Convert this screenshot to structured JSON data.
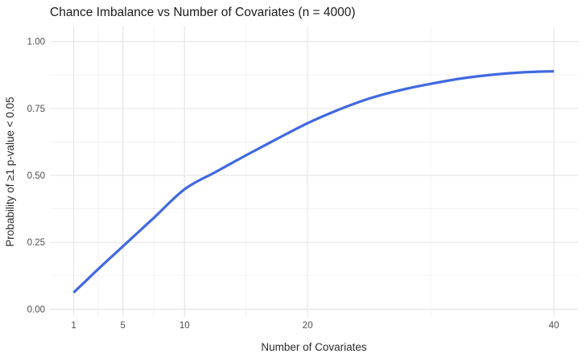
{
  "title": "Chance Imbalance vs Number of Covariates (n = 4000)",
  "colors": {
    "line": "#4169E1",
    "grid_major": "#E6E6E6",
    "grid_minor": "#F1F1F1",
    "tick_label": "#4D4D4D",
    "title_text": "#1A1A1A",
    "background": "#FFFFFF"
  },
  "chart_data": {
    "type": "line",
    "title": "Chance Imbalance vs Number of Covariates (n = 4000)",
    "xlabel": "Number of Covariates",
    "ylabel": "Probability of ≥1 p-value < 0.05",
    "x_scale": "linear",
    "xlim": [
      -0.93,
      41.95
    ],
    "ylim": [
      -0.029,
      1.056
    ],
    "x_ticks": [
      1,
      5,
      10,
      20,
      40
    ],
    "x_tick_labels": [
      "1",
      "5",
      "10",
      "20",
      "40"
    ],
    "x_minor_ticks": [
      3,
      7.5,
      15,
      30
    ],
    "y_ticks": [
      0,
      0.25,
      0.5,
      0.75,
      1
    ],
    "y_tick_labels": [
      "0.00",
      "0.25",
      "0.50",
      "0.75",
      "1.00"
    ],
    "y_minor_ticks": [
      0.125,
      0.375,
      0.625,
      0.875
    ],
    "grid": "major+minor",
    "legend": "none",
    "series": [
      {
        "name": "chance-imbalance-curve",
        "color": "#4169E1",
        "points": [
          [
            1,
            0.062
          ],
          [
            3,
            0.15
          ],
          [
            5,
            0.235
          ],
          [
            7.5,
            0.341
          ],
          [
            10,
            0.448
          ],
          [
            12.5,
            0.512
          ],
          [
            15,
            0.575
          ],
          [
            17.5,
            0.636
          ],
          [
            20,
            0.695
          ],
          [
            22.5,
            0.745
          ],
          [
            25,
            0.787
          ],
          [
            27.5,
            0.818
          ],
          [
            30,
            0.842
          ],
          [
            32.5,
            0.862
          ],
          [
            35,
            0.876
          ],
          [
            37.5,
            0.885
          ],
          [
            40,
            0.889
          ]
        ]
      }
    ]
  }
}
